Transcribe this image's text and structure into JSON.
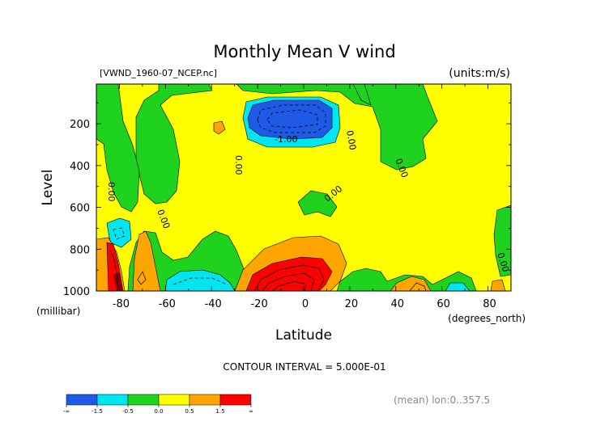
{
  "chart_data": {
    "type": "contour",
    "title": "Monthly Mean V wind",
    "file_label": "[VWND_1960-07_NCEP.nc]",
    "units_label": "(units:m/s)",
    "xlabel": "Latitude",
    "x_units": "(degrees_north)",
    "ylabel": "Level",
    "y_units": "(millibar)",
    "x_ticks": [
      "-80",
      "-60",
      "-40",
      "-20",
      "0",
      "20",
      "40",
      "60",
      "80"
    ],
    "x_tick_values": [
      -80,
      -60,
      -40,
      -20,
      0,
      20,
      40,
      60,
      80
    ],
    "y_ticks": [
      "200",
      "400",
      "600",
      "800",
      "1000"
    ],
    "y_tick_values": [
      200,
      400,
      600,
      800,
      1000
    ],
    "xlim": [
      -90,
      90
    ],
    "ylim": [
      1000,
      10
    ],
    "contour_interval": "CONTOUR INTERVAL = 5.000E-01",
    "footnote": "(mean) lon:0..357.5",
    "contour_labels": [
      "0.00",
      "0.00",
      "0.00",
      "0.00",
      "0.00",
      "0.00",
      "0.00",
      "-1.00"
    ],
    "colorbar": {
      "labels": [
        "-∞",
        "-1.5",
        "-0.5",
        "0.0",
        "0.5",
        "1.5",
        "∞"
      ],
      "colors": [
        "#1e5ae6",
        "#00e6f0",
        "#1ed21e",
        "#ffff00",
        "#ffa500",
        "#ff0000"
      ],
      "bounds": [
        "-inf",
        -1.5,
        -0.5,
        0.0,
        0.5,
        1.5,
        "inf"
      ]
    }
  }
}
